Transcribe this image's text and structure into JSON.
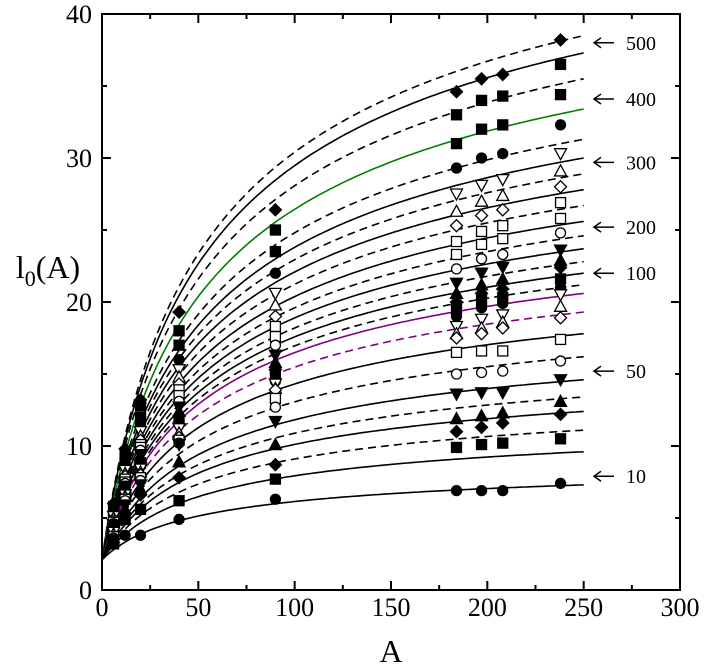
{
  "chart_data": {
    "type": "line",
    "xlabel": "A",
    "ylabel_main": "l",
    "ylabel_sub": "0",
    "ylabel_rest": "(A)",
    "xlim": [
      0,
      300
    ],
    "ylim": [
      0,
      40
    ],
    "x_ticks": [
      0,
      50,
      100,
      150,
      200,
      250,
      300
    ],
    "y_ticks": [
      0,
      10,
      20,
      30,
      40
    ],
    "grid": false,
    "curve_x_max": 250,
    "data_x": [
      6,
      12,
      20,
      40,
      90,
      184,
      197,
      208,
      238
    ],
    "series": [
      {
        "ymax": 38.5,
        "style": "dashed",
        "color": "#000000",
        "marker": "diamond",
        "fill": true,
        "values": [
          6.0,
          9.8,
          13.2,
          19.3,
          26.4,
          34.6,
          35.5,
          35.8,
          38.2
        ]
      },
      {
        "ymax": 37.3,
        "style": "solid",
        "color": "#000000",
        "marker": "square",
        "fill": true,
        "values": [
          5.8,
          9.5,
          12.8,
          18.0,
          25.0,
          33.0,
          34.0,
          34.3,
          36.5
        ]
      },
      {
        "ymax": 35.5,
        "style": "dashed",
        "color": "#000000",
        "marker": "square",
        "fill": true,
        "values": [
          5.5,
          9.0,
          12.0,
          17.0,
          23.5,
          31.0,
          32.0,
          32.3,
          34.4
        ]
      },
      {
        "ymax": 33.4,
        "style": "solid",
        "color": "#008000",
        "marker": "circle",
        "fill": true,
        "values": [
          5.3,
          8.6,
          11.5,
          16.0,
          22.0,
          29.3,
          30.0,
          30.3,
          32.3
        ]
      },
      {
        "ymax": 31.3,
        "style": "dashed",
        "color": "#000000",
        "marker": "triangle-down",
        "fill": false,
        "values": [
          5.1,
          8.3,
          11.0,
          15.3,
          20.6,
          27.5,
          28.1,
          28.5,
          30.3
        ]
      },
      {
        "ymax": 30.0,
        "style": "solid",
        "color": "#000000",
        "marker": "triangle-up",
        "fill": false,
        "values": [
          5.0,
          8.1,
          10.7,
          14.8,
          19.8,
          26.3,
          27.0,
          27.4,
          29.1
        ]
      },
      {
        "ymax": 28.9,
        "style": "dashed",
        "color": "#000000",
        "marker": "diamond",
        "fill": false,
        "values": [
          4.9,
          7.9,
          10.4,
          14.3,
          19.0,
          25.3,
          26.0,
          26.4,
          28.0
        ]
      },
      {
        "ymax": 27.8,
        "style": "solid",
        "color": "#000000",
        "marker": "square",
        "fill": false,
        "values": [
          4.8,
          7.7,
          10.1,
          13.9,
          18.3,
          24.2,
          24.9,
          25.3,
          26.9
        ]
      },
      {
        "ymax": 26.7,
        "style": "dashed",
        "color": "#000000",
        "marker": "square",
        "fill": false,
        "values": [
          4.7,
          7.5,
          9.9,
          13.5,
          17.6,
          23.3,
          24.0,
          24.4,
          25.8
        ]
      },
      {
        "ymax": 25.6,
        "style": "solid",
        "color": "#000000",
        "marker": "circle",
        "fill": false,
        "values": [
          4.6,
          7.4,
          9.7,
          13.1,
          17.0,
          22.3,
          23.0,
          23.3,
          24.8
        ]
      },
      {
        "ymax": 24.6,
        "style": "dashed",
        "color": "#000000",
        "marker": "triangle-down",
        "fill": true,
        "values": [
          4.5,
          7.2,
          9.4,
          12.7,
          16.3,
          21.3,
          22.0,
          22.4,
          23.6
        ]
      },
      {
        "ymax": 23.7,
        "style": "solid",
        "color": "#000000",
        "marker": "triangle-up",
        "fill": true,
        "values": [
          4.4,
          7.1,
          9.2,
          12.4,
          15.8,
          20.6,
          21.2,
          21.6,
          22.9
        ]
      },
      {
        "ymax": 22.8,
        "style": "dashed",
        "color": "#000000",
        "marker": "diamond",
        "fill": true,
        "values": [
          4.3,
          6.9,
          9.0,
          12.1,
          15.3,
          20.0,
          20.6,
          20.9,
          22.4
        ]
      },
      {
        "ymax": 22.0,
        "style": "solid",
        "color": "#000000",
        "marker": "square",
        "fill": true,
        "values": [
          4.2,
          6.8,
          8.8,
          11.8,
          14.9,
          19.5,
          20.1,
          20.3,
          21.6
        ]
      },
      {
        "ymax": 21.2,
        "style": "dashed",
        "color": "#000000",
        "marker": "circle",
        "fill": true,
        "values": [
          4.1,
          6.7,
          8.6,
          11.5,
          14.5,
          19.0,
          19.6,
          19.9,
          21.0
        ]
      },
      {
        "ymax": 20.6,
        "style": "solid",
        "color": "#800080",
        "marker": "triangle-down",
        "fill": false,
        "values": [
          4.0,
          6.6,
          8.4,
          11.2,
          14.3,
          18.3,
          18.8,
          19.1,
          20.5
        ]
      },
      {
        "ymax": 19.3,
        "style": "dashed",
        "color": "#800080",
        "marker": "triangle-up",
        "fill": false,
        "values": [
          3.9,
          6.5,
          8.2,
          10.9,
          14.0,
          17.8,
          18.2,
          18.6,
          19.7
        ]
      },
      {
        "ymax": 17.8,
        "style": "solid",
        "color": "#000000",
        "marker": "diamond",
        "fill": false,
        "values": [
          3.8,
          6.4,
          8.0,
          10.6,
          13.9,
          17.5,
          17.8,
          18.2,
          18.9
        ]
      },
      {
        "ymax": 16.2,
        "style": "dashed",
        "color": "#000000",
        "marker": "square",
        "fill": false,
        "values": [
          3.7,
          6.3,
          7.8,
          10.4,
          13.3,
          16.5,
          16.6,
          16.6,
          17.4
        ]
      },
      {
        "ymax": 14.6,
        "style": "solid",
        "color": "#000000",
        "marker": "circle",
        "fill": false,
        "values": [
          3.6,
          6.2,
          7.6,
          10.2,
          12.7,
          15.0,
          15.1,
          15.2,
          15.9
        ]
      },
      {
        "ymax": 13.4,
        "style": "dashed",
        "color": "#000000",
        "marker": "triangle-down",
        "fill": true,
        "values": [
          3.5,
          5.9,
          7.3,
          10.1,
          11.7,
          13.6,
          13.7,
          13.7,
          14.6
        ]
      },
      {
        "ymax": 12.4,
        "style": "solid",
        "color": "#000000",
        "marker": "triangle-up",
        "fill": true,
        "values": [
          3.4,
          5.6,
          7.0,
          8.9,
          10.1,
          11.9,
          12.1,
          12.3,
          13.1
        ]
      },
      {
        "ymax": 11.1,
        "style": "dashed",
        "color": "#000000",
        "marker": "diamond",
        "fill": true,
        "values": [
          3.3,
          5.3,
          6.6,
          7.8,
          8.7,
          11.0,
          11.3,
          11.6,
          12.2
        ]
      },
      {
        "ymax": 9.6,
        "style": "solid",
        "color": "#000000",
        "marker": "square",
        "fill": true,
        "values": [
          3.2,
          4.9,
          5.6,
          6.2,
          7.7,
          9.9,
          10.1,
          10.2,
          10.5
        ]
      },
      {
        "ymax": 7.3,
        "style": "solid",
        "color": "#000000",
        "marker": "circle",
        "fill": true,
        "values": [
          3.3,
          3.8,
          3.8,
          4.9,
          6.3,
          6.9,
          6.9,
          6.9,
          7.4
        ]
      }
    ],
    "annotations": [
      {
        "label": "500",
        "y": 38.0
      },
      {
        "label": "400",
        "y": 34.1
      },
      {
        "label": "300",
        "y": 29.7
      },
      {
        "label": "200",
        "y": 25.2
      },
      {
        "label": "100",
        "y": 22.0
      },
      {
        "label": "50",
        "y": 15.2
      },
      {
        "label": "10",
        "y": 7.9
      }
    ]
  }
}
